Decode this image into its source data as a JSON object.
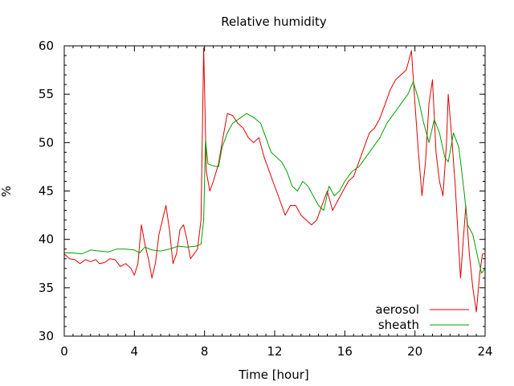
{
  "chart_data": {
    "type": "line",
    "title": "Relative humidity",
    "xlabel": "Time [hour]",
    "ylabel": "%",
    "xlim": [
      0,
      24
    ],
    "ylim": [
      30,
      60
    ],
    "xticks": [
      0,
      4,
      8,
      12,
      16,
      20,
      24
    ],
    "yticks": [
      30,
      35,
      40,
      45,
      50,
      55,
      60
    ],
    "grid": false,
    "legend_position": "bottom-right",
    "series": [
      {
        "name": "aerosol",
        "color": "#e00000",
        "points": [
          [
            0.0,
            38.5
          ],
          [
            0.3,
            38.0
          ],
          [
            0.6,
            37.9
          ],
          [
            0.9,
            37.5
          ],
          [
            1.2,
            37.9
          ],
          [
            1.5,
            37.7
          ],
          [
            1.8,
            37.9
          ],
          [
            2.0,
            37.5
          ],
          [
            2.3,
            37.6
          ],
          [
            2.6,
            38.0
          ],
          [
            2.9,
            37.9
          ],
          [
            3.2,
            37.2
          ],
          [
            3.5,
            37.5
          ],
          [
            3.8,
            37.0
          ],
          [
            4.0,
            36.3
          ],
          [
            4.2,
            37.5
          ],
          [
            4.4,
            41.5
          ],
          [
            4.6,
            39.5
          ],
          [
            4.8,
            38.0
          ],
          [
            5.0,
            36.0
          ],
          [
            5.2,
            37.5
          ],
          [
            5.4,
            40.5
          ],
          [
            5.6,
            42.0
          ],
          [
            5.8,
            43.5
          ],
          [
            6.0,
            41.0
          ],
          [
            6.2,
            37.5
          ],
          [
            6.4,
            38.5
          ],
          [
            6.6,
            41.0
          ],
          [
            6.8,
            41.5
          ],
          [
            7.0,
            40.0
          ],
          [
            7.2,
            38.0
          ],
          [
            7.4,
            38.5
          ],
          [
            7.6,
            39.0
          ],
          [
            7.8,
            42.0
          ],
          [
            7.95,
            59.8
          ],
          [
            8.1,
            47.0
          ],
          [
            8.3,
            45.0
          ],
          [
            8.5,
            46.0
          ],
          [
            8.8,
            47.8
          ],
          [
            9.0,
            50.0
          ],
          [
            9.3,
            53.0
          ],
          [
            9.6,
            52.8
          ],
          [
            9.9,
            52.0
          ],
          [
            10.2,
            51.5
          ],
          [
            10.5,
            50.5
          ],
          [
            10.8,
            50.0
          ],
          [
            11.1,
            50.5
          ],
          [
            11.4,
            48.5
          ],
          [
            11.7,
            47.0
          ],
          [
            12.0,
            45.5
          ],
          [
            12.3,
            44.0
          ],
          [
            12.6,
            42.5
          ],
          [
            12.9,
            43.5
          ],
          [
            13.2,
            43.5
          ],
          [
            13.5,
            42.5
          ],
          [
            13.8,
            42.0
          ],
          [
            14.1,
            41.5
          ],
          [
            14.4,
            42.0
          ],
          [
            14.7,
            43.5
          ],
          [
            15.0,
            45.0
          ],
          [
            15.3,
            43.0
          ],
          [
            15.6,
            44.0
          ],
          [
            15.9,
            45.0
          ],
          [
            16.2,
            46.0
          ],
          [
            16.5,
            46.5
          ],
          [
            16.8,
            48.0
          ],
          [
            17.1,
            49.5
          ],
          [
            17.4,
            51.0
          ],
          [
            17.7,
            51.5
          ],
          [
            18.0,
            52.5
          ],
          [
            18.3,
            54.0
          ],
          [
            18.6,
            55.5
          ],
          [
            18.9,
            56.5
          ],
          [
            19.2,
            57.0
          ],
          [
            19.5,
            57.5
          ],
          [
            19.8,
            59.5
          ],
          [
            20.0,
            54.0
          ],
          [
            20.2,
            49.0
          ],
          [
            20.4,
            44.5
          ],
          [
            20.6,
            48.0
          ],
          [
            20.8,
            54.0
          ],
          [
            21.0,
            56.5
          ],
          [
            21.2,
            49.0
          ],
          [
            21.4,
            46.0
          ],
          [
            21.6,
            44.5
          ],
          [
            21.8,
            50.0
          ],
          [
            21.9,
            55.0
          ],
          [
            22.1,
            50.5
          ],
          [
            22.3,
            45.5
          ],
          [
            22.5,
            39.0
          ],
          [
            22.6,
            36.0
          ],
          [
            22.8,
            41.0
          ],
          [
            22.9,
            43.5
          ],
          [
            23.1,
            38.5
          ],
          [
            23.3,
            35.0
          ],
          [
            23.5,
            32.5
          ],
          [
            23.7,
            36.5
          ],
          [
            23.85,
            38.5
          ],
          [
            24.0,
            38.5
          ]
        ]
      },
      {
        "name": "sheath",
        "color": "#00a000",
        "points": [
          [
            0.0,
            38.6
          ],
          [
            0.5,
            38.6
          ],
          [
            1.0,
            38.5
          ],
          [
            1.5,
            38.9
          ],
          [
            2.0,
            38.8
          ],
          [
            2.5,
            38.7
          ],
          [
            3.0,
            39.0
          ],
          [
            3.5,
            39.0
          ],
          [
            4.0,
            38.9
          ],
          [
            4.3,
            38.6
          ],
          [
            4.6,
            39.2
          ],
          [
            5.0,
            38.9
          ],
          [
            5.5,
            38.8
          ],
          [
            6.0,
            39.0
          ],
          [
            6.5,
            39.3
          ],
          [
            7.0,
            39.2
          ],
          [
            7.5,
            39.3
          ],
          [
            7.8,
            39.5
          ],
          [
            7.95,
            42.0
          ],
          [
            8.05,
            50.3
          ],
          [
            8.2,
            47.8
          ],
          [
            8.5,
            47.6
          ],
          [
            8.8,
            47.5
          ],
          [
            9.0,
            49.5
          ],
          [
            9.3,
            51.0
          ],
          [
            9.6,
            52.0
          ],
          [
            10.0,
            52.5
          ],
          [
            10.4,
            53.0
          ],
          [
            10.8,
            52.6
          ],
          [
            11.2,
            52.0
          ],
          [
            11.5,
            50.5
          ],
          [
            11.8,
            49.0
          ],
          [
            12.1,
            48.5
          ],
          [
            12.4,
            48.0
          ],
          [
            12.7,
            47.0
          ],
          [
            13.0,
            45.5
          ],
          [
            13.3,
            45.0
          ],
          [
            13.6,
            46.0
          ],
          [
            13.9,
            45.5
          ],
          [
            14.2,
            44.5
          ],
          [
            14.5,
            43.5
          ],
          [
            14.8,
            43.0
          ],
          [
            15.1,
            45.5
          ],
          [
            15.4,
            44.5
          ],
          [
            15.7,
            45.0
          ],
          [
            16.0,
            46.0
          ],
          [
            16.4,
            47.0
          ],
          [
            16.8,
            47.5
          ],
          [
            17.2,
            48.5
          ],
          [
            17.6,
            49.5
          ],
          [
            18.0,
            50.5
          ],
          [
            18.4,
            52.0
          ],
          [
            18.8,
            53.0
          ],
          [
            19.2,
            54.0
          ],
          [
            19.6,
            55.0
          ],
          [
            19.9,
            56.3
          ],
          [
            20.2,
            54.5
          ],
          [
            20.5,
            52.0
          ],
          [
            20.8,
            50.0
          ],
          [
            21.1,
            52.4
          ],
          [
            21.4,
            51.0
          ],
          [
            21.7,
            48.5
          ],
          [
            21.9,
            48.0
          ],
          [
            22.2,
            51.0
          ],
          [
            22.5,
            49.5
          ],
          [
            22.8,
            45.0
          ],
          [
            23.0,
            41.5
          ],
          [
            23.3,
            40.5
          ],
          [
            23.6,
            38.0
          ],
          [
            23.8,
            36.5
          ],
          [
            24.0,
            37.0
          ]
        ]
      }
    ]
  }
}
